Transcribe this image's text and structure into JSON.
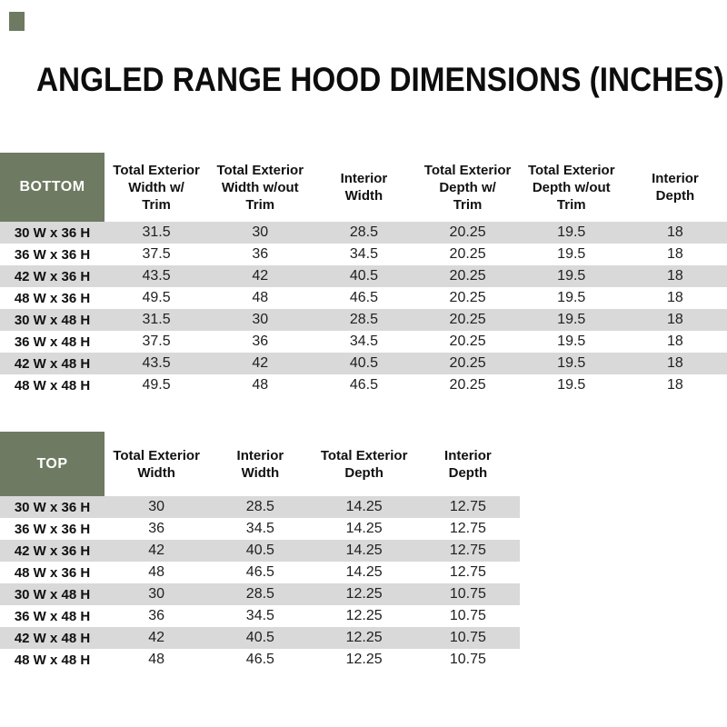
{
  "title": "ANGLED RANGE HOOD DIMENSIONS (INCHES)",
  "colors": {
    "header_green": "#6e7b62",
    "stripe_gray": "#d9d9d9",
    "text_black": "#0d0d0d"
  },
  "bottom_table": {
    "label": "BOTTOM",
    "columns": [
      "Total Exterior\nWidth w/\nTrim",
      "Total Exterior\nWidth w/out\nTrim",
      "Interior\nWidth",
      "Total Exterior\nDepth w/\nTrim",
      "Total Exterior\nDepth w/out\nTrim",
      "Interior\nDepth"
    ],
    "rows": [
      {
        "size": "30 W x 36 H",
        "values": [
          "31.5",
          "30",
          "28.5",
          "20.25",
          "19.5",
          "18"
        ]
      },
      {
        "size": "36 W x 36 H",
        "values": [
          "37.5",
          "36",
          "34.5",
          "20.25",
          "19.5",
          "18"
        ]
      },
      {
        "size": "42 W x 36 H",
        "values": [
          "43.5",
          "42",
          "40.5",
          "20.25",
          "19.5",
          "18"
        ]
      },
      {
        "size": "48 W x 36 H",
        "values": [
          "49.5",
          "48",
          "46.5",
          "20.25",
          "19.5",
          "18"
        ]
      },
      {
        "size": "30 W x 48 H",
        "values": [
          "31.5",
          "30",
          "28.5",
          "20.25",
          "19.5",
          "18"
        ]
      },
      {
        "size": "36 W x 48 H",
        "values": [
          "37.5",
          "36",
          "34.5",
          "20.25",
          "19.5",
          "18"
        ]
      },
      {
        "size": "42 W x 48 H",
        "values": [
          "43.5",
          "42",
          "40.5",
          "20.25",
          "19.5",
          "18"
        ]
      },
      {
        "size": "48 W x 48 H",
        "values": [
          "49.5",
          "48",
          "46.5",
          "20.25",
          "19.5",
          "18"
        ]
      }
    ]
  },
  "top_table": {
    "label": "TOP",
    "columns": [
      "Total Exterior\nWidth",
      "Interior\nWidth",
      "Total Exterior\nDepth",
      "Interior\nDepth"
    ],
    "rows": [
      {
        "size": "30 W x 36 H",
        "values": [
          "30",
          "28.5",
          "14.25",
          "12.75"
        ]
      },
      {
        "size": "36 W x 36 H",
        "values": [
          "36",
          "34.5",
          "14.25",
          "12.75"
        ]
      },
      {
        "size": "42 W x 36 H",
        "values": [
          "42",
          "40.5",
          "14.25",
          "12.75"
        ]
      },
      {
        "size": "48 W x 36 H",
        "values": [
          "48",
          "46.5",
          "14.25",
          "12.75"
        ]
      },
      {
        "size": "30 W x 48 H",
        "values": [
          "30",
          "28.5",
          "12.25",
          "10.75"
        ]
      },
      {
        "size": "36 W x 48 H",
        "values": [
          "36",
          "34.5",
          "12.25",
          "10.75"
        ]
      },
      {
        "size": "42 W x 48 H",
        "values": [
          "42",
          "40.5",
          "12.25",
          "10.75"
        ]
      },
      {
        "size": "48 W x 48 H",
        "values": [
          "48",
          "46.5",
          "12.25",
          "10.75"
        ]
      }
    ]
  }
}
